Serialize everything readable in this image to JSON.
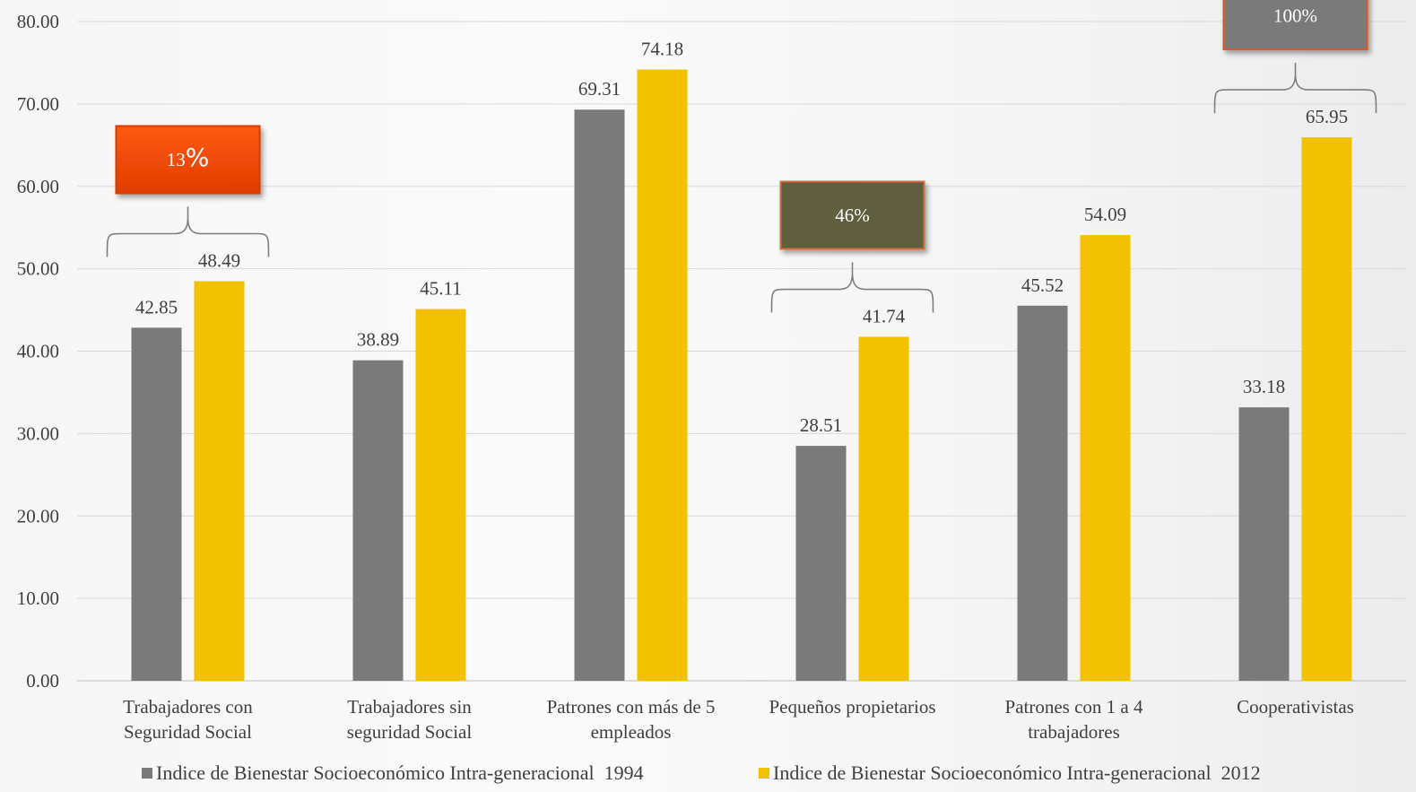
{
  "chart_data": {
    "type": "bar",
    "categories": [
      [
        "Trabajadores con",
        "Seguridad Social"
      ],
      [
        "Trabajadores sin",
        "seguridad Social"
      ],
      [
        "Patrones con más de 5",
        "empleados"
      ],
      [
        "Pequeños propietarios"
      ],
      [
        "Patrones con 1 a 4",
        "trabajadores"
      ],
      [
        "Cooperativistas"
      ]
    ],
    "series": [
      {
        "name": "Indice de Bienestar Socioeconómico Intra-generacional  1994",
        "color": "#7a7a7a",
        "values": [
          42.85,
          38.89,
          69.31,
          28.51,
          45.52,
          33.18
        ],
        "labels": [
          "42.85",
          "38.89",
          "69.31",
          "28.51",
          "45.52",
          "33.18"
        ]
      },
      {
        "name": "Indice de Bienestar Socioeconómico Intra-generacional  2012",
        "color": "#f2c200",
        "values": [
          48.49,
          45.11,
          74.18,
          41.74,
          54.09,
          65.95
        ],
        "labels": [
          "48.49",
          "45.11",
          "74.18",
          "41.74",
          "54.09",
          "65.95"
        ]
      }
    ],
    "ylim": [
      0,
      80
    ],
    "yticks": [
      "0.00",
      "10.00",
      "20.00",
      "30.00",
      "40.00",
      "50.00",
      "60.00",
      "70.00",
      "80.00"
    ],
    "grid": true,
    "legend_position": "bottom",
    "title": "",
    "xlabel": "",
    "ylabel": "",
    "annotations": [
      {
        "category_index": 0,
        "text_main": "13",
        "text_suffix": "%",
        "fill": "#f04a00",
        "border": "#d93a00"
      },
      {
        "category_index": 3,
        "text_main": "46%",
        "text_suffix": "",
        "fill": "#5e5e40",
        "border": "#d96a3a"
      },
      {
        "category_index": 5,
        "text_main": "100%",
        "text_suffix": "",
        "fill": "#7a7a7a",
        "border": "#d9582a"
      }
    ]
  }
}
